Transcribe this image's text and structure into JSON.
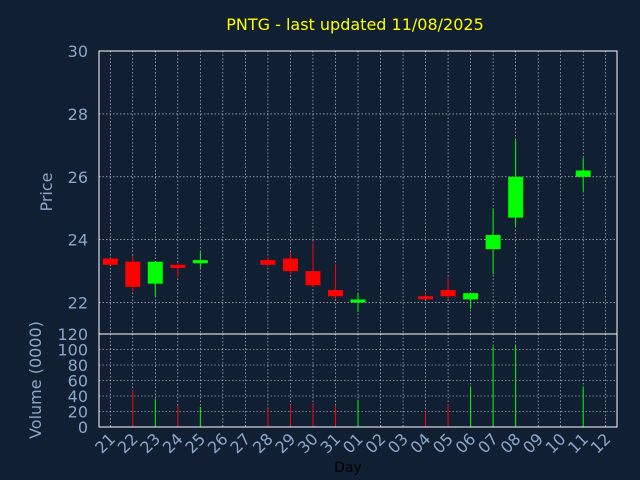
{
  "chart_data": {
    "type": "candlestick",
    "title": "PNTG - last updated 11/08/2025",
    "xlabel": "Day",
    "price_panel": {
      "ylabel": "Price",
      "ylim": [
        21,
        30
      ],
      "yticks": [
        22,
        24,
        26,
        28,
        30
      ],
      "grid": true
    },
    "volume_panel": {
      "ylabel": "Volume (0000)",
      "ylim": [
        0,
        120
      ],
      "yticks": [
        0,
        20,
        40,
        60,
        80,
        100,
        120
      ],
      "grid": true
    },
    "x_tick_labels": [
      "21",
      "22",
      "23",
      "24",
      "25",
      "26",
      "27",
      "28",
      "29",
      "30",
      "31",
      "01",
      "02",
      "03",
      "04",
      "05",
      "06",
      "07",
      "08",
      "09",
      "10",
      "11",
      "12"
    ],
    "colors": {
      "up": "#00ff00",
      "down": "#ff0000",
      "title": "#ffff00",
      "axis_text": "#8ca6c8",
      "background": "#111f32"
    },
    "candles": [
      {
        "x": "21",
        "open": 23.4,
        "high": 23.4,
        "low": 23.2,
        "close": 23.2,
        "volume": 0
      },
      {
        "x": "22",
        "open": 23.3,
        "high": 23.5,
        "low": 22.35,
        "close": 22.5,
        "volume": 48
      },
      {
        "x": "23",
        "open": 22.6,
        "high": 23.3,
        "low": 22.2,
        "close": 23.3,
        "volume": 36
      },
      {
        "x": "24",
        "open": 23.2,
        "high": 23.25,
        "low": 22.8,
        "close": 23.1,
        "volume": 28
      },
      {
        "x": "25",
        "open": 23.25,
        "high": 23.6,
        "low": 23.1,
        "close": 23.35,
        "volume": 26
      },
      {
        "x": "28",
        "open": 23.35,
        "high": 23.45,
        "low": 23.15,
        "close": 23.2,
        "volume": 24
      },
      {
        "x": "29",
        "open": 23.4,
        "high": 23.6,
        "low": 22.9,
        "close": 23.0,
        "volume": 29
      },
      {
        "x": "30",
        "open": 23.0,
        "high": 23.9,
        "low": 22.5,
        "close": 22.55,
        "volume": 31
      },
      {
        "x": "31",
        "open": 22.4,
        "high": 23.2,
        "low": 22.1,
        "close": 22.2,
        "volume": 27
      },
      {
        "x": "01",
        "open": 22.0,
        "high": 22.3,
        "low": 21.7,
        "close": 22.1,
        "volume": 35
      },
      {
        "x": "04",
        "open": 22.2,
        "high": 22.3,
        "low": 22.1,
        "close": 22.15,
        "volume": 20
      },
      {
        "x": "05",
        "open": 22.4,
        "high": 22.8,
        "low": 22.1,
        "close": 22.2,
        "volume": 30
      },
      {
        "x": "06",
        "open": 22.1,
        "high": 22.3,
        "low": 21.8,
        "close": 22.3,
        "volume": 52
      },
      {
        "x": "07",
        "open": 23.7,
        "high": 25.0,
        "low": 22.9,
        "close": 24.15,
        "volume": 104
      },
      {
        "x": "08",
        "open": 24.7,
        "high": 27.2,
        "low": 24.4,
        "close": 26.0,
        "volume": 105
      },
      {
        "x": "11",
        "open": 26.0,
        "high": 26.6,
        "low": 25.55,
        "close": 26.2,
        "volume": 52
      }
    ]
  }
}
